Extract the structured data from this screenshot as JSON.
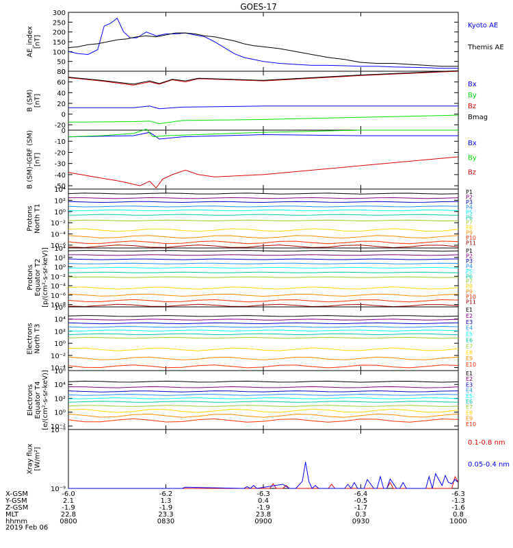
{
  "title": "GOES-17",
  "date_label": "2019 Feb 06",
  "colors": {
    "black": "#000000",
    "blue": "#0000ff",
    "green": "#00dd00",
    "red": "#dd0000",
    "P1": "#000000",
    "P2": "#800080",
    "P3": "#0000cc",
    "P4": "#1e90ff",
    "P5": "#00ffff",
    "P6": "#00c8a0",
    "P7": "#9acd32",
    "P8": "#ffd700",
    "P9": "#ff8c00",
    "P10": "#ff3000",
    "P11": "#aa0000"
  },
  "chart_data": [
    {
      "type": "line",
      "ylabel": "AE_index\n[nT]",
      "ylim": [
        0,
        300
      ],
      "yticks": [
        "0",
        "50",
        "100",
        "150",
        "200",
        "250",
        "300"
      ],
      "xlim": [
        0,
        120
      ],
      "series": [
        {
          "name": "Kyoto AE",
          "color": "#0000ff",
          "x": [
            0,
            3,
            6,
            9,
            11,
            13,
            15,
            17,
            19,
            21,
            24,
            27,
            30,
            33,
            36,
            39,
            42,
            45,
            48,
            51,
            54,
            57,
            60,
            65,
            70,
            75,
            80,
            85,
            90,
            95,
            100,
            105,
            110,
            115,
            120
          ],
          "values": [
            100,
            90,
            85,
            110,
            230,
            245,
            270,
            200,
            170,
            170,
            200,
            180,
            190,
            190,
            195,
            185,
            175,
            150,
            120,
            90,
            70,
            60,
            50,
            40,
            35,
            30,
            30,
            28,
            25,
            25,
            22,
            20,
            18,
            15,
            15
          ]
        },
        {
          "name": "Themis AE",
          "color": "#000000",
          "x": [
            0,
            3,
            6,
            9,
            12,
            15,
            18,
            21,
            24,
            27,
            30,
            33,
            36,
            39,
            42,
            45,
            48,
            51,
            54,
            57,
            60,
            65,
            70,
            75,
            80,
            85,
            90,
            95,
            100,
            105,
            110,
            115,
            120
          ],
          "values": [
            120,
            125,
            135,
            140,
            150,
            160,
            165,
            175,
            180,
            175,
            185,
            195,
            195,
            190,
            180,
            175,
            165,
            155,
            140,
            130,
            125,
            115,
            100,
            85,
            70,
            60,
            45,
            40,
            40,
            35,
            30,
            25,
            25
          ]
        }
      ]
    },
    {
      "type": "line",
      "ylabel": "B (SM)\n[nT]",
      "ylim": [
        -30,
        80
      ],
      "yticks": [
        "-20",
        "0",
        "20",
        "40",
        "60",
        "80"
      ],
      "xlim": [
        0,
        120
      ],
      "series": [
        {
          "name": "Bx",
          "color": "#0000ff",
          "x": [
            0,
            20,
            25,
            28,
            35,
            60,
            90,
            120
          ],
          "values": [
            12,
            12,
            15,
            10,
            13,
            15,
            15,
            15
          ]
        },
        {
          "name": "By",
          "color": "#00dd00",
          "x": [
            0,
            20,
            25,
            28,
            35,
            60,
            90,
            120
          ],
          "values": [
            -15,
            -14,
            -13,
            -18,
            -12,
            -10,
            -6,
            -2
          ]
        },
        {
          "name": "Bz",
          "color": "#dd0000",
          "x": [
            0,
            10,
            20,
            25,
            28,
            32,
            36,
            40,
            60,
            90,
            120
          ],
          "values": [
            68,
            62,
            54,
            60,
            56,
            64,
            60,
            66,
            62,
            72,
            80
          ]
        },
        {
          "name": "Bmag",
          "color": "#000000",
          "x": [
            0,
            10,
            20,
            25,
            28,
            32,
            36,
            40,
            60,
            90,
            120
          ],
          "values": [
            69,
            63,
            56,
            62,
            57,
            65,
            62,
            67,
            63,
            73,
            81
          ]
        }
      ]
    },
    {
      "type": "line",
      "ylabel": "B (SM)-IGRF (SM)\n[nT]",
      "ylim": [
        -53,
        0
      ],
      "yticks": [
        "-50",
        "-40",
        "-30",
        "-20",
        "-10",
        "0"
      ],
      "xlim": [
        0,
        120
      ],
      "series": [
        {
          "name": "Bx",
          "color": "#0000ff",
          "x": [
            0,
            20,
            25,
            28,
            35,
            60,
            90,
            120
          ],
          "values": [
            -6,
            -5,
            -2,
            -8,
            -6,
            -4,
            -5,
            -5
          ]
        },
        {
          "name": "By",
          "color": "#00dd00",
          "x": [
            0,
            10,
            20,
            24,
            26,
            30,
            40,
            60,
            90,
            120
          ],
          "values": [
            -6,
            -5,
            -3,
            1,
            -6,
            -5,
            -4,
            -2,
            0,
            0
          ]
        },
        {
          "name": "Bz",
          "color": "#dd0000",
          "x": [
            0,
            8,
            16,
            22,
            25,
            27,
            29,
            32,
            36,
            40,
            45,
            60,
            75,
            90,
            105,
            120
          ],
          "values": [
            -38,
            -42,
            -46,
            -50,
            -46,
            -52,
            -44,
            -40,
            -36,
            -40,
            -42,
            -40,
            -36,
            -32,
            -28,
            -24
          ]
        }
      ]
    },
    {
      "type": "line",
      "ylabel": "Protons\nNorth T1",
      "log": true,
      "ylim": [
        -6.5,
        4
      ],
      "yticks": [
        "10⁻⁶",
        "10⁻⁴",
        "10⁻²",
        "10⁰",
        "10²",
        "10⁴"
      ],
      "legend": [
        "P1",
        "P2",
        "P3",
        "P4",
        "P5",
        "P6",
        "P7",
        "P8",
        "P9",
        "P10",
        "P11"
      ],
      "levels": [
        3.2,
        2.4,
        1.7,
        0.9,
        0.2,
        -0.6,
        -1.6,
        -3.3,
        -4.5,
        -5.5,
        -6.2
      ]
    },
    {
      "type": "line",
      "ylabel": "Protons\nEquator T2\n[p/(cm²-s-sr-keV)]",
      "log": true,
      "ylim": [
        -8.5,
        4
      ],
      "yticks": [
        "10⁻⁸",
        "10⁻⁶",
        "10⁻⁴",
        "10⁻²",
        "10⁰",
        "10²",
        "10⁴"
      ],
      "legend": [
        "P1",
        "P2",
        "P3",
        "P4",
        "P5",
        "P6",
        "P7",
        "P8",
        "P9",
        "P10",
        "P11"
      ],
      "levels": [
        3.4,
        2.5,
        1.6,
        0.7,
        -0.2,
        -1.2,
        -2.2,
        -4.5,
        -6.0,
        -7.2,
        -8.2
      ]
    },
    {
      "type": "line",
      "ylabel": "Electrons\nNorth T3",
      "log": true,
      "ylim": [
        -4.5,
        6
      ],
      "yticks": [
        "10⁻⁴",
        "10⁻²",
        "10⁰",
        "10²",
        "10⁴",
        "10⁶"
      ],
      "legend": [
        "E1",
        "E2",
        "E3",
        "E4",
        "E5",
        "E6",
        "E7",
        "E8",
        "E9",
        "E10"
      ],
      "levels": [
        4.5,
        3.9,
        3.3,
        2.7,
        2.1,
        1.5,
        0.9,
        -1.0,
        -2.5,
        -3.8
      ]
    },
    {
      "type": "line",
      "ylabel": "Electrons\nEquator T4\n[e/(cm²-s-sr-keV)]",
      "log": true,
      "ylim": [
        -2.5,
        6
      ],
      "yticks": [
        "10⁻²",
        "10⁰",
        "10²",
        "10⁴",
        "10⁶"
      ],
      "legend": [
        "E1",
        "E2",
        "E3",
        "E4",
        "E5",
        "E6",
        "E7",
        "E8",
        "E9",
        "E10"
      ],
      "levels": [
        4.4,
        3.6,
        3.0,
        2.5,
        2.0,
        1.5,
        0.9,
        0.2,
        -0.5,
        -1.2
      ]
    },
    {
      "type": "line",
      "ylabel": "Xray flux\n[W/m²]",
      "log": true,
      "ylim": [
        -9,
        -8
      ],
      "yticks": [
        "10⁻⁹",
        "10⁻⁸"
      ],
      "xlim": [
        0,
        120
      ],
      "series": [
        {
          "name": "0.1-0.8 nm",
          "color": "#dd0000",
          "x": [
            0,
            60,
            62,
            63,
            64,
            66,
            67,
            68,
            70,
            80,
            81,
            82,
            83,
            90,
            98,
            99,
            100,
            102,
            118,
            119,
            120
          ],
          "values": [
            -9,
            -9,
            -9,
            -8.92,
            -9,
            -9,
            -8.95,
            -9,
            -9,
            -9,
            -8.93,
            -9,
            -9,
            -9,
            -9,
            -8.9,
            -9,
            -9,
            -9,
            -8.8,
            -8.9
          ]
        },
        {
          "name": "0.05-0.4 nm",
          "color": "#0000ff",
          "x": [
            0,
            35,
            36,
            54,
            55,
            56,
            57,
            58,
            66,
            68,
            70,
            72,
            73,
            74,
            75,
            76,
            77,
            78,
            79,
            80,
            85,
            86,
            87,
            88,
            89,
            90,
            91,
            92,
            94,
            95,
            96,
            97,
            98,
            99,
            101,
            102,
            103,
            104,
            110,
            111,
            112,
            113,
            114,
            115,
            116,
            117,
            118,
            119,
            120
          ],
          "values": [
            -9,
            -9,
            -8.98,
            -9,
            -8.97,
            -9,
            -8.95,
            -9,
            -8.93,
            -9,
            -9,
            -8.88,
            -8.55,
            -8.88,
            -9,
            -8.95,
            -9,
            -9,
            -9,
            -9,
            -9,
            -8.93,
            -9,
            -8.9,
            -9,
            -9,
            -9,
            -8.85,
            -9,
            -9,
            -8.8,
            -9,
            -9,
            -8.84,
            -9,
            -9,
            -8.9,
            -9,
            -9,
            -8.8,
            -9,
            -8.75,
            -8.85,
            -8.95,
            -8.78,
            -8.9,
            -8.92,
            -8.85,
            -8.9
          ]
        }
      ]
    }
  ],
  "x_axis": {
    "row_labels": [
      "X-GSM",
      "Y-GSM",
      "Z-GSM",
      "MLT",
      "hhmm"
    ],
    "ticks": [
      {
        "x": 0,
        "values": [
          "-6.0",
          "2.1",
          "-1.9",
          "22.8",
          "0800"
        ]
      },
      {
        "x": 30,
        "values": [
          "-6.2",
          "1.3",
          "-1.9",
          "23.3",
          "0830"
        ]
      },
      {
        "x": 60,
        "values": [
          "-6.3",
          "0.4",
          "-1.9",
          "23.8",
          "0900"
        ]
      },
      {
        "x": 90,
        "values": [
          "-6.4",
          "-0.5",
          "-1.7",
          "0.3",
          "0930"
        ]
      },
      {
        "x": 120,
        "values": [
          "-6.3",
          "-1.3",
          "-1.6",
          "0.8",
          "1000"
        ]
      }
    ]
  },
  "legends": [
    [
      "Kyoto AE",
      "Themis AE"
    ],
    [
      "Bx",
      "By",
      "Bz",
      "Bmag"
    ],
    [
      "Bx",
      "By",
      "Bz"
    ],
    [],
    [],
    [],
    [],
    [
      "0.1-0.8 nm",
      "0.05-0.4 nm"
    ]
  ]
}
